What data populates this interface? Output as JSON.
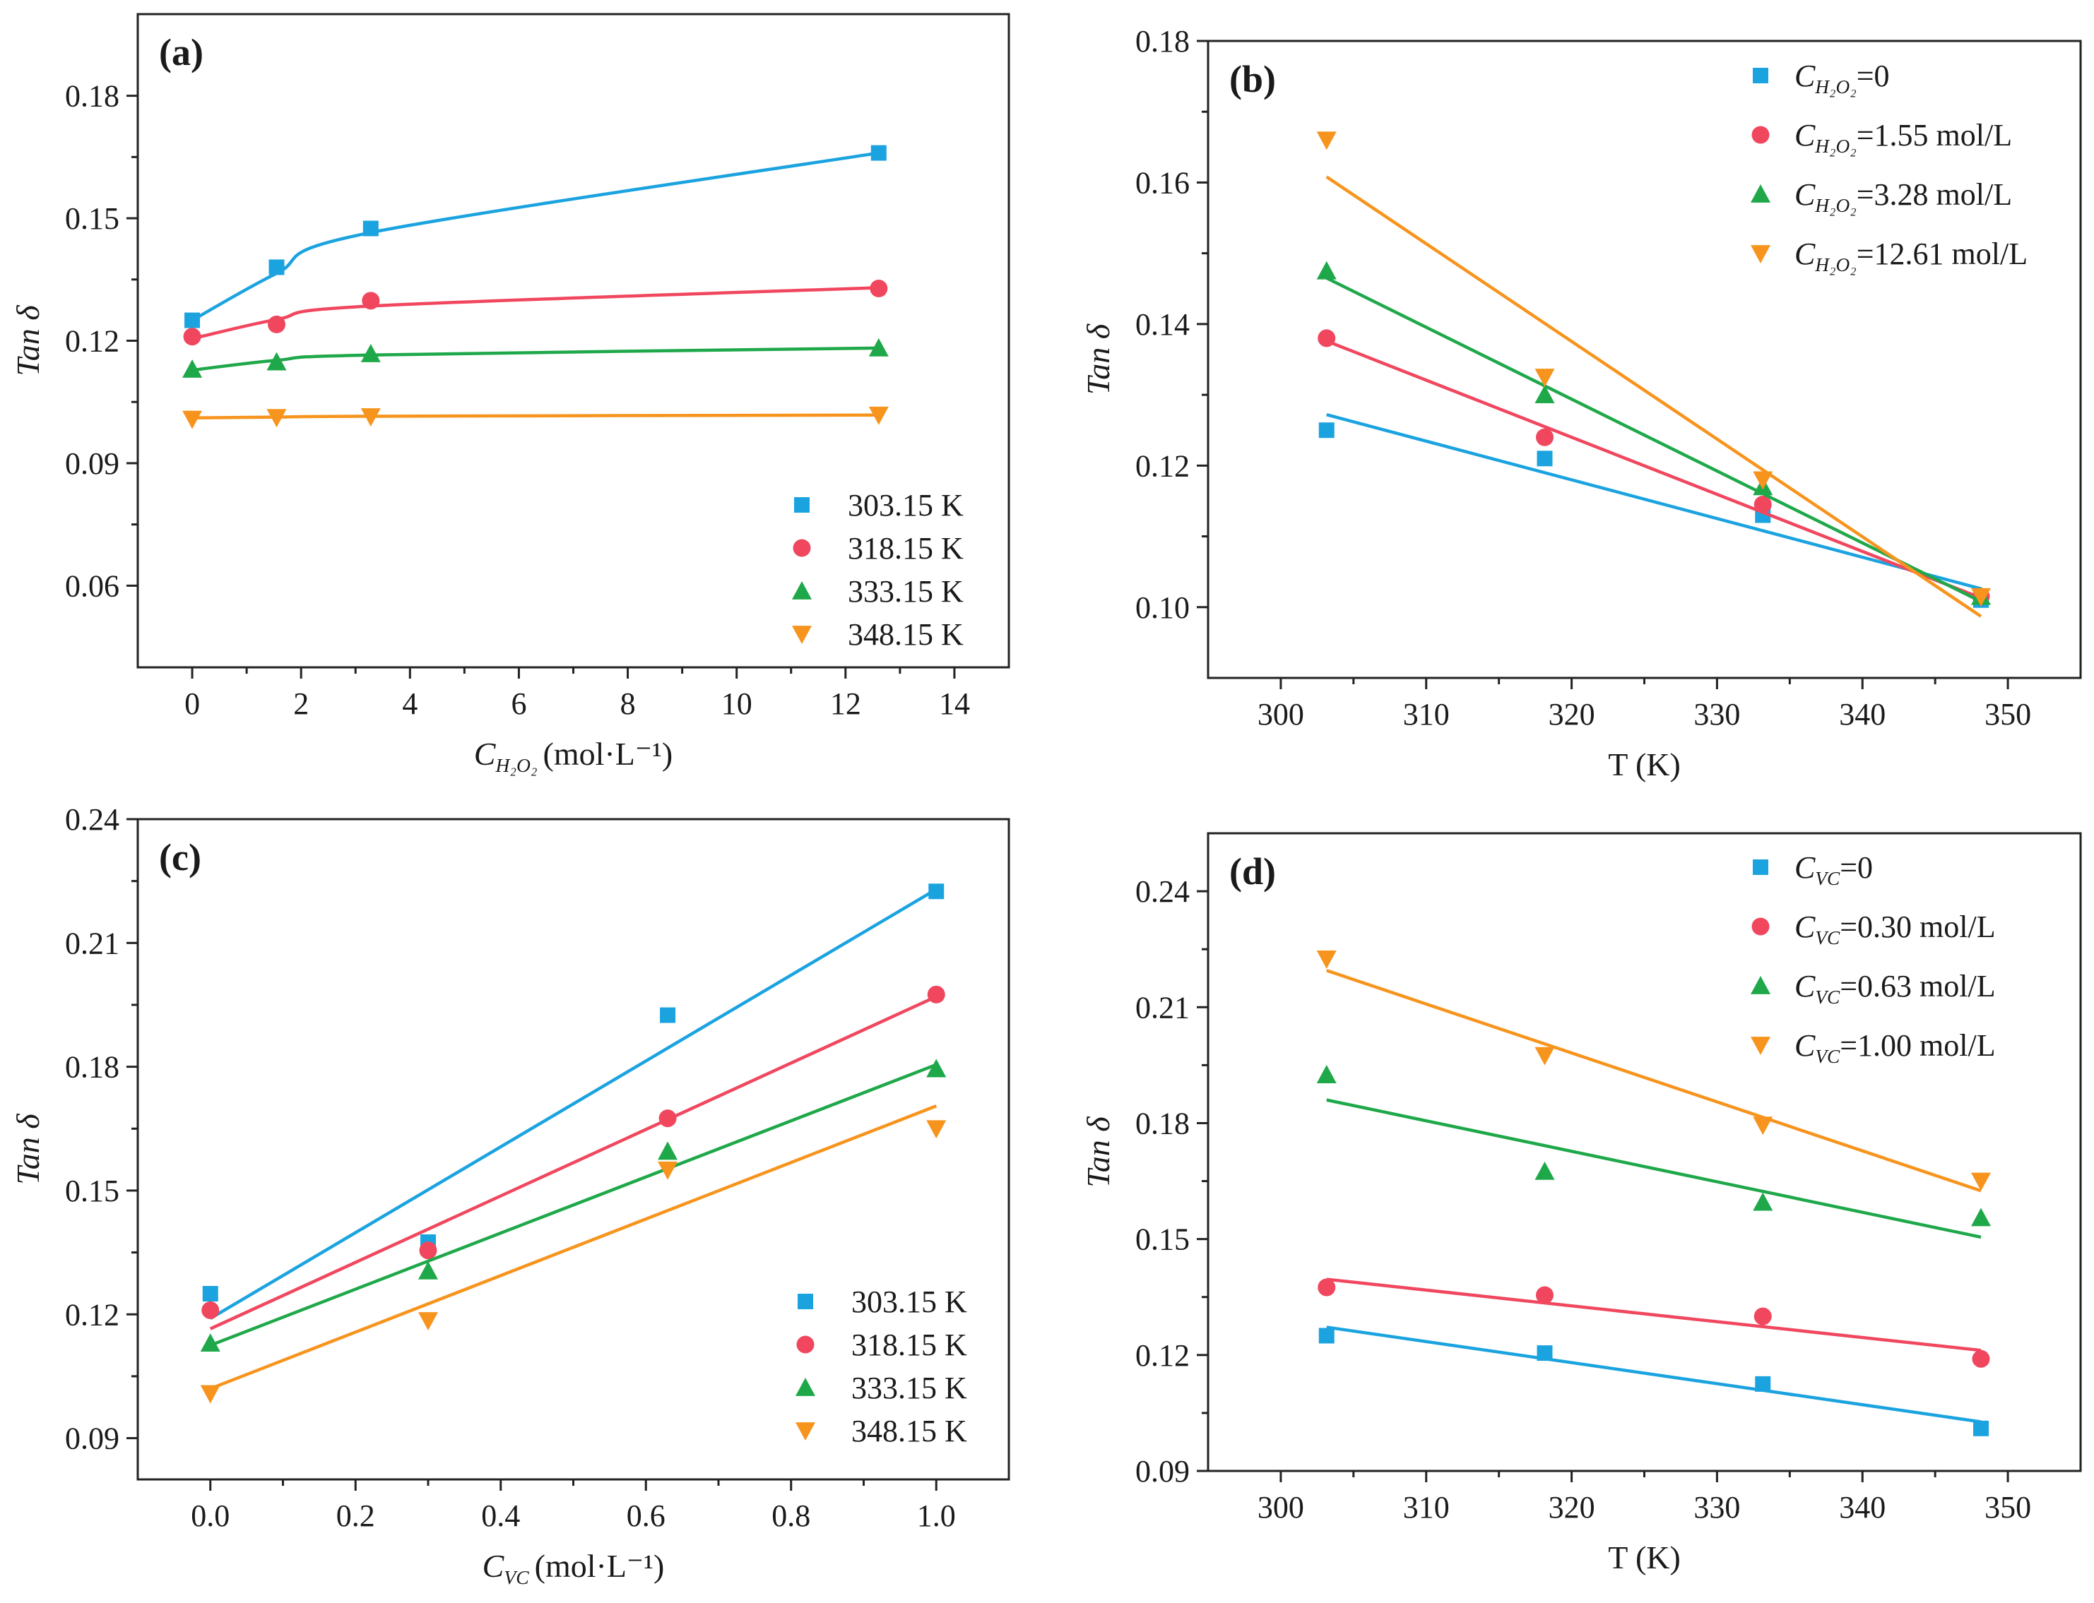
{
  "colors": {
    "s1": "#1ba3e0",
    "s2": "#f0475f",
    "s3": "#1fa84a",
    "s4": "#f7941d"
  },
  "chart_data": [
    {
      "id": "a",
      "label": "(a)",
      "type": "scatter",
      "xlabel_main": "C",
      "xlabel_sub": "H₂O₂",
      "xlabel_unit": "(mol·L⁻¹)",
      "ylabel": "Tan δ",
      "xlim": [
        -1,
        15
      ],
      "ylim": [
        0.04,
        0.2
      ],
      "xticks": [
        0,
        2,
        4,
        6,
        8,
        10,
        12,
        14
      ],
      "yticks": [
        0.06,
        0.09,
        0.12,
        0.15,
        0.18
      ],
      "ytick_decimals": 2,
      "xtick_decimals": 0,
      "legend": "bottom-right",
      "series": [
        {
          "name": "303.15 K",
          "marker": "square",
          "color": "#1ba3e0",
          "x": [
            0,
            1.55,
            3.28,
            12.61
          ],
          "y": [
            0.125,
            0.138,
            0.1475,
            0.166
          ],
          "fit": "curve",
          "fit_y": [
            0.125,
            0.1365,
            0.1465,
            0.166
          ]
        },
        {
          "name": "318.15 K",
          "marker": "circle",
          "color": "#f0475f",
          "x": [
            0,
            1.55,
            3.28,
            12.61
          ],
          "y": [
            0.121,
            0.124,
            0.1298,
            0.1328
          ],
          "fit": "curve",
          "fit_y": [
            0.1205,
            0.1252,
            0.1285,
            0.133
          ]
        },
        {
          "name": "333.15 K",
          "marker": "triangle-up",
          "color": "#1fa84a",
          "x": [
            0,
            1.55,
            3.28,
            12.61
          ],
          "y": [
            0.113,
            0.1148,
            0.1168,
            0.1182
          ],
          "fit": "curve",
          "fit_y": [
            0.1128,
            0.1152,
            0.1165,
            0.1182
          ]
        },
        {
          "name": "348.15 K",
          "marker": "triangle-down",
          "color": "#f7941d",
          "x": [
            0,
            1.55,
            3.28,
            12.61
          ],
          "y": [
            0.1008,
            0.1012,
            0.1014,
            0.1018
          ],
          "fit": "curve",
          "fit_y": [
            0.1011,
            0.1013,
            0.1015,
            0.1018
          ]
        }
      ]
    },
    {
      "id": "b",
      "label": "(b)",
      "type": "scatter",
      "xlabel": "T (K)",
      "ylabel": "Tan δ",
      "xlim": [
        295,
        355
      ],
      "ylim": [
        0.09,
        0.18
      ],
      "xticks": [
        300,
        310,
        320,
        330,
        340,
        350
      ],
      "yticks": [
        0.1,
        0.12,
        0.14,
        0.16,
        0.18
      ],
      "ytick_decimals": 2,
      "xtick_decimals": 0,
      "legend": "top-right",
      "series": [
        {
          "name": "C",
          "legend_sub": "H₂O₂",
          "legend_suffix": "=0",
          "marker": "square",
          "color": "#1ba3e0",
          "x": [
            303.15,
            318.15,
            333.15,
            348.15
          ],
          "y": [
            0.125,
            0.121,
            0.113,
            0.101
          ],
          "fit": "linear",
          "fit_x": [
            303.15,
            348.15
          ],
          "fit_y": [
            0.1272,
            0.1026
          ]
        },
        {
          "name": "C",
          "legend_sub": "H₂O₂",
          "legend_suffix": "=1.55 mol/L",
          "marker": "circle",
          "color": "#f0475f",
          "x": [
            303.15,
            318.15,
            333.15,
            348.15
          ],
          "y": [
            0.138,
            0.124,
            0.1145,
            0.1015
          ],
          "fit": "linear",
          "fit_x": [
            303.15,
            348.15
          ],
          "fit_y": [
            0.1376,
            0.1013
          ]
        },
        {
          "name": "C",
          "legend_sub": "H₂O₂",
          "legend_suffix": "=3.28 mol/L",
          "marker": "triangle-up",
          "color": "#1fa84a",
          "x": [
            303.15,
            318.15,
            333.15,
            348.15
          ],
          "y": [
            0.1475,
            0.13,
            0.117,
            0.1015
          ],
          "fit": "linear",
          "fit_x": [
            303.15,
            348.15
          ],
          "fit_y": [
            0.1465,
            0.1008
          ]
        },
        {
          "name": "C",
          "legend_sub": "H₂O₂",
          "legend_suffix": "=12.61 mol/L",
          "marker": "triangle-down",
          "color": "#f7941d",
          "x": [
            303.15,
            318.15,
            333.15,
            348.15
          ],
          "y": [
            0.166,
            0.1325,
            0.118,
            0.1015
          ],
          "fit": "linear",
          "fit_x": [
            303.15,
            348.15
          ],
          "fit_y": [
            0.1608,
            0.0987
          ]
        }
      ]
    },
    {
      "id": "c",
      "label": "(c)",
      "type": "scatter",
      "xlabel_main": "C",
      "xlabel_sub": "VC",
      "xlabel_unit": "(mol·L⁻¹)",
      "ylabel": "Tan δ",
      "xlim": [
        -0.1,
        1.1
      ],
      "ylim": [
        0.08,
        0.24
      ],
      "xticks": [
        0.0,
        0.2,
        0.4,
        0.6,
        0.8,
        1.0
      ],
      "yticks": [
        0.09,
        0.12,
        0.15,
        0.18,
        0.21,
        0.24
      ],
      "ytick_decimals": 2,
      "xtick_decimals": 1,
      "legend": "bottom-right",
      "series": [
        {
          "name": "303.15 K",
          "marker": "square",
          "color": "#1ba3e0",
          "x": [
            0,
            0.3,
            0.63,
            1.0
          ],
          "y": [
            0.125,
            0.1375,
            0.1925,
            0.2225
          ],
          "fit": "linear",
          "fit_x": [
            0,
            1.0
          ],
          "fit_y": [
            0.119,
            0.223
          ]
        },
        {
          "name": "318.15 K",
          "marker": "circle",
          "color": "#f0475f",
          "x": [
            0,
            0.3,
            0.63,
            1.0
          ],
          "y": [
            0.121,
            0.1355,
            0.1675,
            0.1975
          ],
          "fit": "linear",
          "fit_x": [
            0,
            1.0
          ],
          "fit_y": [
            0.1165,
            0.197
          ]
        },
        {
          "name": "333.15 K",
          "marker": "triangle-up",
          "color": "#1fa84a",
          "x": [
            0,
            0.3,
            0.63,
            1.0
          ],
          "y": [
            0.113,
            0.1305,
            0.1595,
            0.1795
          ],
          "fit": "linear",
          "fit_x": [
            0,
            1.0
          ],
          "fit_y": [
            0.1125,
            0.1805
          ]
        },
        {
          "name": "348.15 K",
          "marker": "triangle-down",
          "color": "#f7941d",
          "x": [
            0,
            0.3,
            0.63,
            1.0
          ],
          "y": [
            0.1008,
            0.1185,
            0.155,
            0.165
          ],
          "fit": "linear",
          "fit_x": [
            0,
            1.0
          ],
          "fit_y": [
            0.102,
            0.1705
          ]
        }
      ]
    },
    {
      "id": "d",
      "label": "(d)",
      "type": "scatter",
      "xlabel": "T (K)",
      "ylabel": "Tan δ",
      "xlim": [
        295,
        355
      ],
      "ylim": [
        0.09,
        0.255
      ],
      "xticks": [
        300,
        310,
        320,
        330,
        340,
        350
      ],
      "yticks": [
        0.09,
        0.12,
        0.15,
        0.18,
        0.21,
        0.24
      ],
      "ytick_decimals": 2,
      "xtick_decimals": 0,
      "legend": "top-right",
      "series": [
        {
          "name": "C",
          "legend_sub": "VC",
          "legend_suffix": "=0",
          "marker": "square",
          "color": "#1ba3e0",
          "x": [
            303.15,
            318.15,
            333.15,
            348.15
          ],
          "y": [
            0.125,
            0.1205,
            0.1125,
            0.101
          ],
          "fit": "linear",
          "fit_x": [
            303.15,
            348.15
          ],
          "fit_y": [
            0.1272,
            0.1027
          ]
        },
        {
          "name": "C",
          "legend_sub": "VC",
          "legend_suffix": "=0.30 mol/L",
          "marker": "circle",
          "color": "#f0475f",
          "x": [
            303.15,
            318.15,
            333.15,
            348.15
          ],
          "y": [
            0.1375,
            0.1355,
            0.13,
            0.119
          ],
          "fit": "linear",
          "fit_x": [
            303.15,
            348.15
          ],
          "fit_y": [
            0.1396,
            0.1212
          ]
        },
        {
          "name": "C",
          "legend_sub": "VC",
          "legend_suffix": "=0.63 mol/L",
          "marker": "triangle-up",
          "color": "#1fa84a",
          "x": [
            303.15,
            318.15,
            333.15,
            348.15
          ],
          "y": [
            0.1925,
            0.1675,
            0.1595,
            0.1555
          ],
          "fit": "linear",
          "fit_x": [
            303.15,
            348.15
          ],
          "fit_y": [
            0.186,
            0.1505
          ]
        },
        {
          "name": "C",
          "legend_sub": "VC",
          "legend_suffix": "=1.00 mol/L",
          "marker": "triangle-down",
          "color": "#f7941d",
          "x": [
            303.15,
            318.15,
            333.15,
            348.15
          ],
          "y": [
            0.2225,
            0.1975,
            0.1795,
            0.165
          ],
          "fit": "linear",
          "fit_x": [
            303.15,
            348.15
          ],
          "fit_y": [
            0.2195,
            0.1625
          ]
        }
      ]
    }
  ]
}
